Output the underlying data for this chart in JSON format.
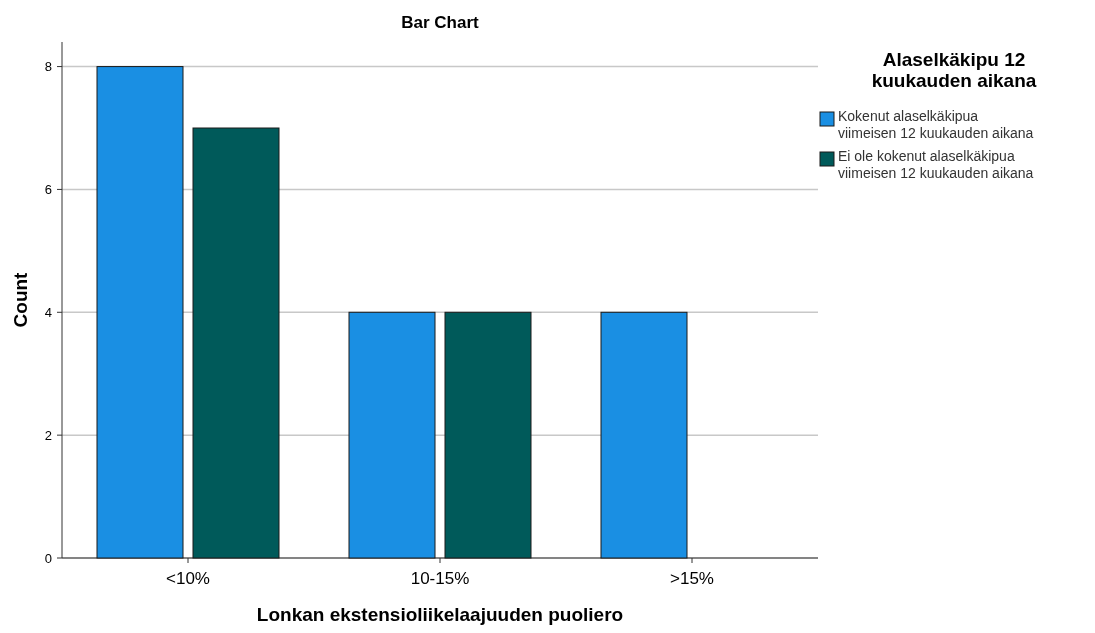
{
  "chart_data": {
    "type": "bar",
    "title": "Bar Chart",
    "xlabel": "Lonkan ekstensioliikelaajuuden puoliero",
    "ylabel": "Count",
    "legend_title": "Alaselkäkipu 12 kuukauden aikana",
    "categories": [
      "<10%",
      "10-15%",
      ">15%"
    ],
    "series": [
      {
        "name": "Kokenut alaselkäkipua viimeisen 12 kuukauden aikana",
        "color": "#1a8fe3",
        "values": [
          8,
          4,
          4
        ]
      },
      {
        "name": "Ei ole kokenut alaselkäkipua viimeisen 12 kuukauden aikana",
        "color": "#005a5a",
        "values": [
          7,
          4,
          null
        ]
      }
    ],
    "ylim": [
      0,
      8.4
    ],
    "yticks": [
      0,
      2,
      4,
      6,
      8
    ],
    "grid": "y",
    "legend": "top right"
  }
}
